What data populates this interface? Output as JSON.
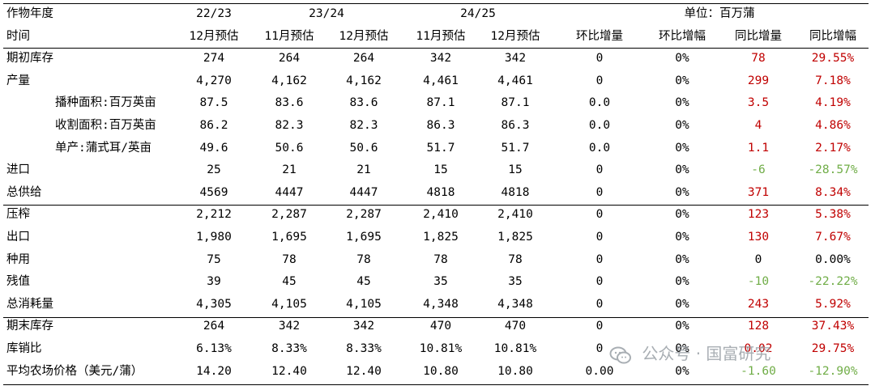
{
  "header": {
    "title": "作物年度",
    "years": [
      "22/23",
      "23/24",
      "24/25"
    ],
    "unit": "单位：百万蒲"
  },
  "subheader": [
    "时间",
    "12月预估",
    "11月预估",
    "12月预估",
    "11月预估",
    "12月预估",
    "环比增量",
    "环比增幅",
    "同比增量",
    "同比增幅"
  ],
  "rows": [
    {
      "label": "期初库存",
      "indent": false,
      "v": [
        "274",
        "264",
        "264",
        "342",
        "342",
        "0",
        "0%",
        "78",
        "29.55%"
      ],
      "colors": [
        "k",
        "k",
        "k",
        "k",
        "k",
        "k",
        "k",
        "r",
        "r"
      ]
    },
    {
      "label": "产量",
      "indent": false,
      "v": [
        "4,270",
        "4,162",
        "4,162",
        "4,461",
        "4,461",
        "0",
        "0%",
        "299",
        "7.18%"
      ],
      "colors": [
        "k",
        "k",
        "k",
        "k",
        "k",
        "k",
        "k",
        "r",
        "r"
      ]
    },
    {
      "label": "播种面积:百万英亩",
      "indent": true,
      "v": [
        "87.5",
        "83.6",
        "83.6",
        "87.1",
        "87.1",
        "0.0",
        "0%",
        "3.5",
        "4.19%"
      ],
      "colors": [
        "k",
        "k",
        "k",
        "k",
        "k",
        "k",
        "k",
        "r",
        "r"
      ]
    },
    {
      "label": "收割面积:百万英亩",
      "indent": true,
      "v": [
        "86.2",
        "82.3",
        "82.3",
        "86.3",
        "86.3",
        "0.0",
        "0%",
        "4",
        "4.86%"
      ],
      "colors": [
        "k",
        "k",
        "k",
        "k",
        "k",
        "k",
        "k",
        "r",
        "r"
      ]
    },
    {
      "label": "单产:蒲式耳/英亩",
      "indent": true,
      "v": [
        "49.6",
        "50.6",
        "50.6",
        "51.7",
        "51.7",
        "0.0",
        "0%",
        "1.1",
        "2.17%"
      ],
      "colors": [
        "k",
        "k",
        "k",
        "k",
        "k",
        "k",
        "k",
        "r",
        "r"
      ]
    },
    {
      "label": "进口",
      "indent": false,
      "v": [
        "25",
        "21",
        "21",
        "15",
        "15",
        "0",
        "0%",
        "-6",
        "-28.57%"
      ],
      "colors": [
        "k",
        "k",
        "k",
        "k",
        "k",
        "k",
        "k",
        "g",
        "g"
      ]
    },
    {
      "label": "总供给",
      "indent": false,
      "v": [
        "4569",
        "4447",
        "4447",
        "4818",
        "4818",
        "0",
        "0%",
        "371",
        "8.34%"
      ],
      "colors": [
        "k",
        "k",
        "k",
        "k",
        "k",
        "k",
        "k",
        "r",
        "r"
      ]
    },
    {
      "label": "压榨",
      "indent": false,
      "v": [
        "2,212",
        "2,287",
        "2,287",
        "2,410",
        "2,410",
        "0",
        "0%",
        "123",
        "5.38%"
      ],
      "colors": [
        "k",
        "k",
        "k",
        "k",
        "k",
        "k",
        "k",
        "r",
        "r"
      ]
    },
    {
      "label": "出口",
      "indent": false,
      "v": [
        "1,980",
        "1,695",
        "1,695",
        "1,825",
        "1,825",
        "0",
        "0%",
        "130",
        "7.67%"
      ],
      "colors": [
        "k",
        "k",
        "k",
        "k",
        "k",
        "k",
        "k",
        "r",
        "r"
      ]
    },
    {
      "label": "种用",
      "indent": false,
      "v": [
        "75",
        "78",
        "78",
        "78",
        "78",
        "0",
        "0%",
        "0",
        "0.00%"
      ],
      "colors": [
        "k",
        "k",
        "k",
        "k",
        "k",
        "k",
        "k",
        "k",
        "k"
      ]
    },
    {
      "label": "残值",
      "indent": false,
      "v": [
        "39",
        "45",
        "45",
        "35",
        "35",
        "0",
        "0%",
        "-10",
        "-22.22%"
      ],
      "colors": [
        "k",
        "k",
        "k",
        "k",
        "k",
        "k",
        "k",
        "g",
        "g"
      ]
    },
    {
      "label": "总消耗量",
      "indent": false,
      "v": [
        "4,305",
        "4,105",
        "4,105",
        "4,348",
        "4,348",
        "0",
        "0%",
        "243",
        "5.92%"
      ],
      "colors": [
        "k",
        "k",
        "k",
        "k",
        "k",
        "k",
        "k",
        "r",
        "r"
      ]
    },
    {
      "label": "期末库存",
      "indent": false,
      "v": [
        "264",
        "342",
        "342",
        "470",
        "470",
        "0",
        "0%",
        "128",
        "37.43%"
      ],
      "colors": [
        "k",
        "k",
        "k",
        "k",
        "k",
        "k",
        "k",
        "r",
        "r"
      ]
    },
    {
      "label": "库销比",
      "indent": false,
      "v": [
        "6.13%",
        "8.33%",
        "8.33%",
        "10.81%",
        "10.81%",
        "0",
        "0%",
        "0.02",
        "29.75%"
      ],
      "colors": [
        "k",
        "k",
        "k",
        "k",
        "k",
        "k",
        "k",
        "r",
        "r"
      ]
    },
    {
      "label": "平均农场价格（美元/蒲）",
      "indent": false,
      "v": [
        "14.20",
        "12.40",
        "12.40",
        "10.80",
        "10.80",
        "0.00",
        "0%",
        "-1.60",
        "-12.90%"
      ],
      "colors": [
        "k",
        "k",
        "k",
        "k",
        "k",
        "k",
        "k",
        "g",
        "g"
      ]
    }
  ],
  "watermark": {
    "text": "公众号 · 国富研究"
  },
  "colors": {
    "up": "#c00000",
    "down": "#70ad47"
  }
}
